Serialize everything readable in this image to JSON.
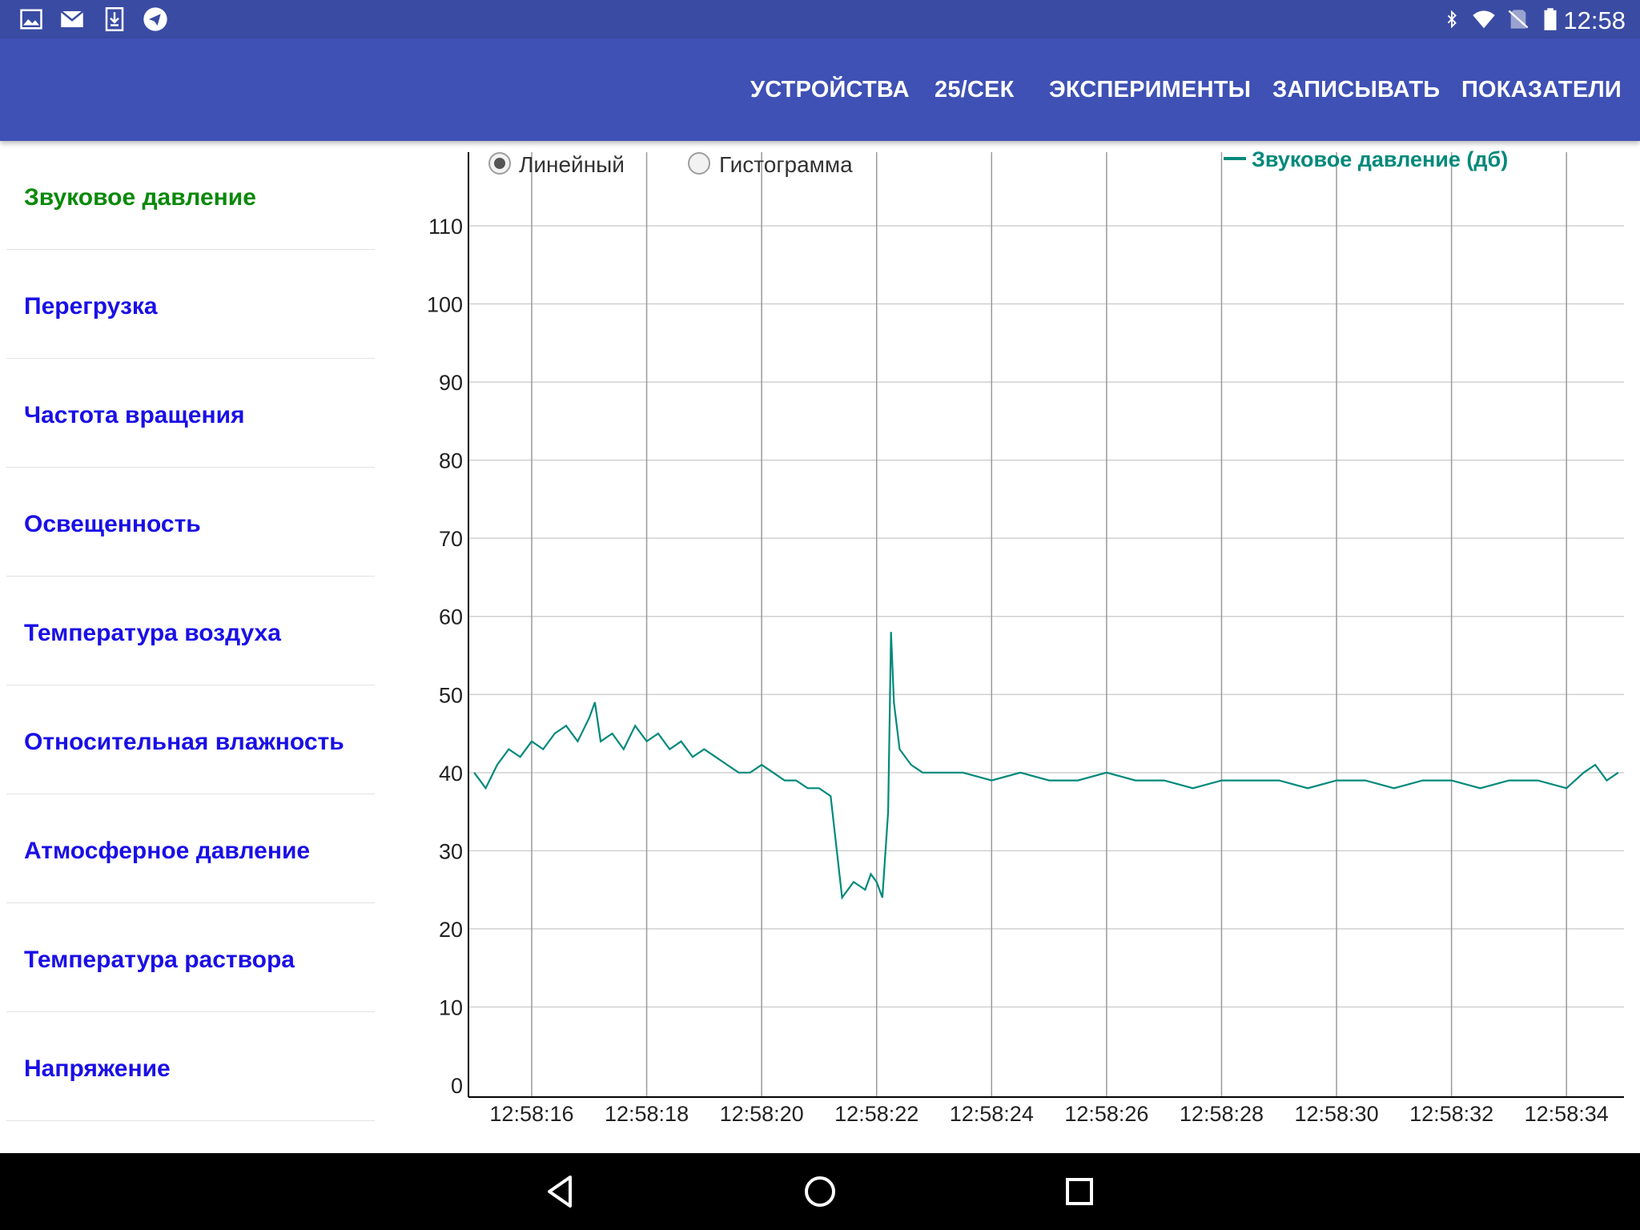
{
  "status_bar": {
    "time": "12:58",
    "left_icons": [
      "image-icon",
      "mail-icon",
      "download-icon",
      "telegram-icon"
    ],
    "right_icons": [
      "bluetooth-icon",
      "wifi-icon",
      "no-sim-icon",
      "battery-icon"
    ]
  },
  "app_bar": {
    "menu": [
      "УСТРОЙСТВА",
      "25/СЕК",
      "ЭКСПЕРИМЕНТЫ",
      "ЗАПИСЫВАТЬ",
      "ПОКАЗАТЕЛИ"
    ],
    "color": "#3f51b5"
  },
  "sidebar": {
    "items": [
      {
        "label": "Звуковое давление",
        "active": true
      },
      {
        "label": "Перегрузка",
        "active": false
      },
      {
        "label": "Частота вращения",
        "active": false
      },
      {
        "label": "Освещенность",
        "active": false
      },
      {
        "label": "Температура воздуха",
        "active": false
      },
      {
        "label": "Относительная влажность",
        "active": false
      },
      {
        "label": "Атмосферное давление",
        "active": false
      },
      {
        "label": "Температура раствора",
        "active": false
      },
      {
        "label": "Напряжение",
        "active": false
      }
    ],
    "active_color": "#0a8a0a",
    "item_color": "#1a0fe6"
  },
  "chart_mode": {
    "options": [
      "Линейный",
      "Гистограмма"
    ],
    "selected": "Линейный"
  },
  "chart_data": {
    "type": "line",
    "series": [
      {
        "name": "Звуковое давление (дб)",
        "color": "#00897b",
        "x_seconds": [
          15.0,
          15.2,
          15.4,
          15.6,
          15.8,
          16.0,
          16.2,
          16.4,
          16.6,
          16.8,
          17.0,
          17.1,
          17.2,
          17.4,
          17.6,
          17.8,
          18.0,
          18.2,
          18.4,
          18.6,
          18.8,
          19.0,
          19.2,
          19.4,
          19.6,
          19.8,
          20.0,
          20.2,
          20.4,
          20.6,
          20.8,
          21.0,
          21.2,
          21.4,
          21.6,
          21.8,
          21.9,
          22.0,
          22.1,
          22.2,
          22.25,
          22.3,
          22.4,
          22.6,
          22.8,
          23.0,
          23.5,
          24.0,
          24.5,
          25.0,
          25.5,
          26.0,
          26.5,
          27.0,
          27.5,
          28.0,
          28.5,
          29.0,
          29.5,
          30.0,
          30.5,
          31.0,
          31.5,
          32.0,
          32.5,
          33.0,
          33.5,
          34.0,
          34.3,
          34.5,
          34.7,
          34.9
        ],
        "y": [
          40,
          38,
          41,
          43,
          42,
          44,
          43,
          45,
          46,
          44,
          47,
          49,
          44,
          45,
          43,
          46,
          44,
          45,
          43,
          44,
          42,
          43,
          42,
          41,
          40,
          40,
          41,
          40,
          39,
          39,
          38,
          38,
          37,
          24,
          26,
          25,
          27,
          26,
          24,
          35,
          58,
          49,
          43,
          41,
          40,
          40,
          40,
          39,
          40,
          39,
          39,
          40,
          39,
          39,
          38,
          39,
          39,
          39,
          38,
          39,
          39,
          38,
          39,
          39,
          38,
          39,
          39,
          38,
          40,
          41,
          39,
          40
        ]
      }
    ],
    "x_tick_labels": [
      "12:58:16",
      "12:58:18",
      "12:58:20",
      "12:58:22",
      "12:58:24",
      "12:58:26",
      "12:58:28",
      "12:58:30",
      "12:58:32",
      "12:58:34"
    ],
    "x_tick_seconds": [
      16,
      18,
      20,
      22,
      24,
      26,
      28,
      30,
      32,
      34
    ],
    "xlim_seconds": [
      14.9,
      35.0
    ],
    "y_ticks": [
      0,
      10,
      20,
      30,
      40,
      50,
      60,
      70,
      80,
      90,
      100,
      110
    ],
    "ylim": [
      0,
      110
    ],
    "grid": true,
    "legend_position": "top-right",
    "title": "",
    "xlabel": "",
    "ylabel": ""
  }
}
